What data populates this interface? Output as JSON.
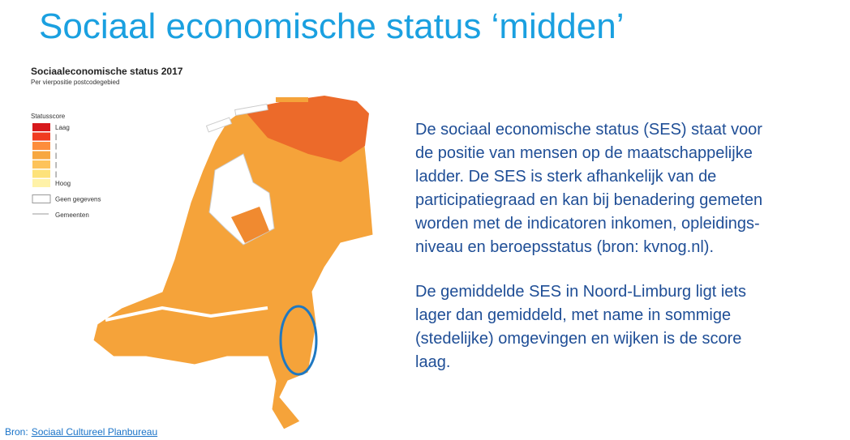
{
  "header": {
    "title": "Sociaal economische status ‘midden’"
  },
  "map": {
    "title": "Sociaaleconomische status 2017",
    "subtitle": "Per vierpositie postcodegebied",
    "legend": {
      "title": "Statusscore",
      "items": [
        {
          "label": "Laag",
          "color": "#d7191c"
        },
        {
          "label": "|",
          "color": "#f03b20"
        },
        {
          "label": "|",
          "color": "#fd8d3c"
        },
        {
          "label": "|",
          "color": "#f7a740"
        },
        {
          "label": "|",
          "color": "#fdc35a"
        },
        {
          "label": "|",
          "color": "#fde27a"
        },
        {
          "label": "Hoog",
          "color": "#fff2a8"
        },
        {
          "label": "Geen gegevens",
          "color": "#ffffff"
        },
        {
          "label": "Gemeenten",
          "color": "#cccccc"
        }
      ]
    }
  },
  "text": {
    "paragraphs": [
      [
        "De sociaal economische status (SES) staat voor",
        "de positie van mensen op de maatschappelijke",
        "ladder. De SES is sterk afhankelijk van de",
        "participatiegraad en kan bij benadering gemeten",
        "worden met de indicatoren inkomen, opleidings-",
        "niveau en beroepsstatus (bron: kvnog.nl)."
      ],
      [
        "De gemiddelde SES in Noord-Limburg ligt iets",
        "lager dan gemiddeld, met name in sommige",
        "(stedelijke) omgevingen en wijken is de score",
        "laag."
      ]
    ]
  },
  "source": {
    "prefix": "Bron:",
    "link": "Sociaal Cultureel Planbureau"
  }
}
